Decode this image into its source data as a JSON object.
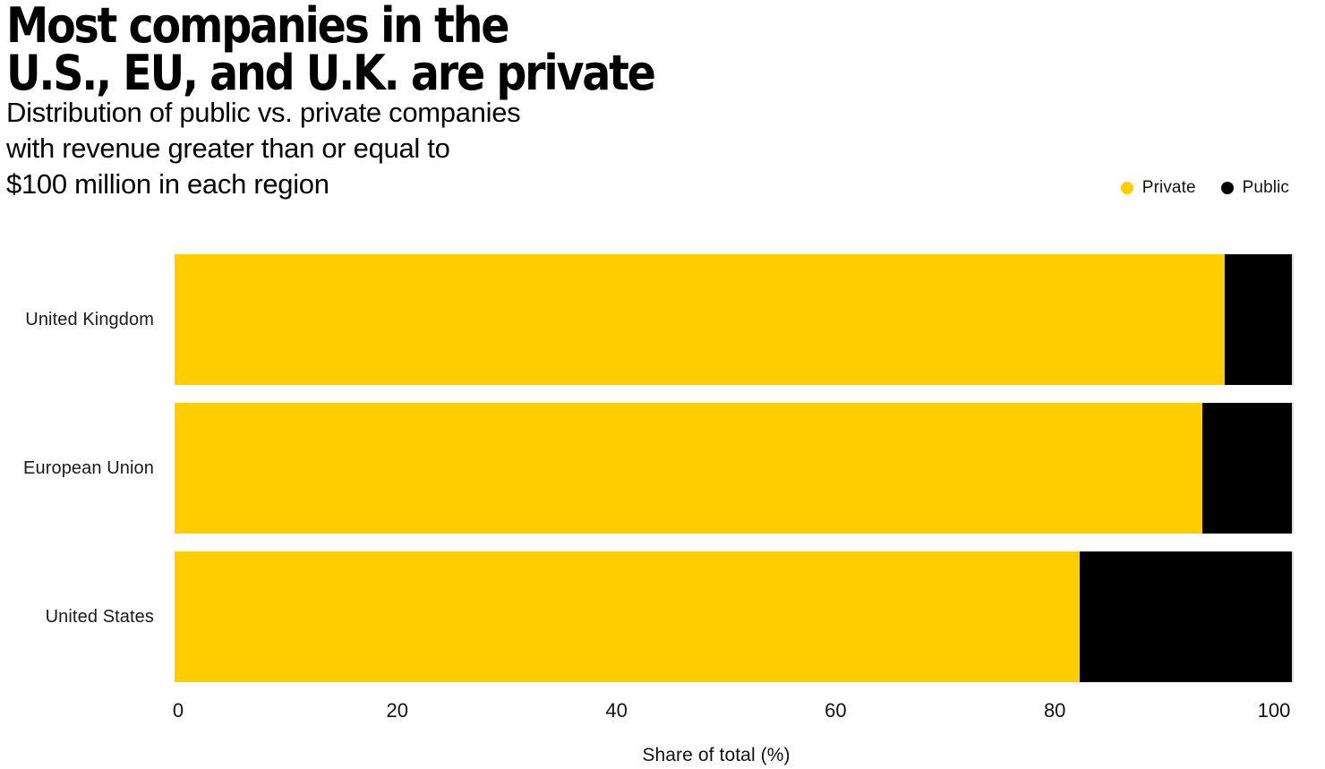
{
  "page": {
    "background": "#ffffff"
  },
  "header": {
    "title_line1": "Most companies in the",
    "title_line2": "U.S., EU, and U.K. are private",
    "subtitle_line1": "Distribution of public vs. private companies",
    "subtitle_line2": "with revenue greater than or equal to",
    "subtitle_line3": "$100 million in each region"
  },
  "colors": {
    "private": "#FFCD00",
    "public": "#000000",
    "text": "#111111",
    "background": "#ffffff"
  },
  "chart_data": {
    "type": "bar",
    "orientation": "horizontal",
    "stacked": true,
    "title": "Most companies in the U.S., EU, and U.K. are private",
    "subtitle": "Distribution of public vs. private companies with revenue greater than or equal to $100 million in each region",
    "categories": [
      "United Kingdom",
      "European Union",
      "United States"
    ],
    "series": [
      {
        "name": "Private",
        "color": "#FFCD00",
        "values": [
          94,
          92,
          81
        ]
      },
      {
        "name": "Public",
        "color": "#000000",
        "values": [
          6,
          8,
          19
        ]
      }
    ],
    "xlabel": "Share of total (%)",
    "xlim": [
      0,
      100
    ],
    "xticks": [
      0,
      20,
      40,
      60,
      80,
      100
    ],
    "legend_position": "top-right",
    "grid": false
  }
}
